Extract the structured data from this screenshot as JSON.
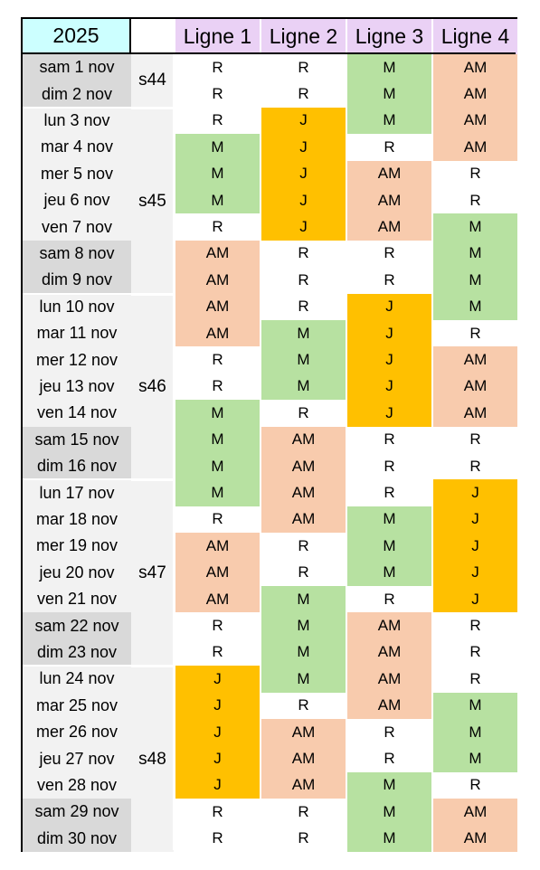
{
  "header": {
    "year": "2025",
    "lines": [
      "Ligne 1",
      "Ligne 2",
      "Ligne 3",
      "Ligne 4"
    ]
  },
  "colors": {
    "M": "#b7e1a1",
    "J": "#ffc000",
    "AM": "#f8cbad",
    "R": "#ffffff",
    "weekend": "#d9d9d9",
    "weekday": "#f2f2f2",
    "year_bg": "#ccffff",
    "line_bg": "#ead1f5"
  },
  "weeks": [
    {
      "label": "s44",
      "start": 0,
      "end": 1
    },
    {
      "label": "s45",
      "start": 2,
      "end": 8
    },
    {
      "label": "s46",
      "start": 9,
      "end": 15
    },
    {
      "label": "s47",
      "start": 16,
      "end": 22
    },
    {
      "label": "s48",
      "start": 23,
      "end": 29
    }
  ],
  "rows": [
    {
      "date": "sam 1 nov",
      "weekend": true,
      "values": [
        "R",
        "R",
        "M",
        "AM"
      ]
    },
    {
      "date": "dim 2 nov",
      "weekend": true,
      "values": [
        "R",
        "R",
        "M",
        "AM"
      ]
    },
    {
      "date": "lun 3 nov",
      "weekend": false,
      "values": [
        "R",
        "J",
        "M",
        "AM"
      ]
    },
    {
      "date": "mar 4 nov",
      "weekend": false,
      "values": [
        "M",
        "J",
        "R",
        "AM"
      ]
    },
    {
      "date": "mer 5 nov",
      "weekend": false,
      "values": [
        "M",
        "J",
        "AM",
        "R"
      ]
    },
    {
      "date": "jeu 6 nov",
      "weekend": false,
      "values": [
        "M",
        "J",
        "AM",
        "R"
      ]
    },
    {
      "date": "ven 7 nov",
      "weekend": false,
      "values": [
        "R",
        "J",
        "AM",
        "M"
      ]
    },
    {
      "date": "sam 8 nov",
      "weekend": true,
      "values": [
        "AM",
        "R",
        "R",
        "M"
      ]
    },
    {
      "date": "dim 9 nov",
      "weekend": true,
      "values": [
        "AM",
        "R",
        "R",
        "M"
      ]
    },
    {
      "date": "lun 10 nov",
      "weekend": false,
      "values": [
        "AM",
        "R",
        "J",
        "M"
      ]
    },
    {
      "date": "mar 11 nov",
      "weekend": false,
      "values": [
        "AM",
        "M",
        "J",
        "R"
      ]
    },
    {
      "date": "mer 12 nov",
      "weekend": false,
      "values": [
        "R",
        "M",
        "J",
        "AM"
      ]
    },
    {
      "date": "jeu 13 nov",
      "weekend": false,
      "values": [
        "R",
        "M",
        "J",
        "AM"
      ]
    },
    {
      "date": "ven 14 nov",
      "weekend": false,
      "values": [
        "M",
        "R",
        "J",
        "AM"
      ]
    },
    {
      "date": "sam 15 nov",
      "weekend": true,
      "values": [
        "M",
        "AM",
        "R",
        "R"
      ]
    },
    {
      "date": "dim 16 nov",
      "weekend": true,
      "values": [
        "M",
        "AM",
        "R",
        "R"
      ]
    },
    {
      "date": "lun 17 nov",
      "weekend": false,
      "values": [
        "M",
        "AM",
        "R",
        "J"
      ]
    },
    {
      "date": "mar 18 nov",
      "weekend": false,
      "values": [
        "R",
        "AM",
        "M",
        "J"
      ]
    },
    {
      "date": "mer 19 nov",
      "weekend": false,
      "values": [
        "AM",
        "R",
        "M",
        "J"
      ]
    },
    {
      "date": "jeu 20 nov",
      "weekend": false,
      "values": [
        "AM",
        "R",
        "M",
        "J"
      ]
    },
    {
      "date": "ven 21 nov",
      "weekend": false,
      "values": [
        "AM",
        "M",
        "R",
        "J"
      ]
    },
    {
      "date": "sam 22 nov",
      "weekend": true,
      "values": [
        "R",
        "M",
        "AM",
        "R"
      ]
    },
    {
      "date": "dim 23 nov",
      "weekend": true,
      "values": [
        "R",
        "M",
        "AM",
        "R"
      ]
    },
    {
      "date": "lun 24 nov",
      "weekend": false,
      "values": [
        "J",
        "M",
        "AM",
        "R"
      ]
    },
    {
      "date": "mar 25 nov",
      "weekend": false,
      "values": [
        "J",
        "R",
        "AM",
        "M"
      ]
    },
    {
      "date": "mer 26 nov",
      "weekend": false,
      "values": [
        "J",
        "AM",
        "R",
        "M"
      ]
    },
    {
      "date": "jeu 27 nov",
      "weekend": false,
      "values": [
        "J",
        "AM",
        "R",
        "M"
      ]
    },
    {
      "date": "ven 28 nov",
      "weekend": false,
      "values": [
        "J",
        "AM",
        "M",
        "R"
      ]
    },
    {
      "date": "sam 29 nov",
      "weekend": true,
      "values": [
        "R",
        "R",
        "M",
        "AM"
      ]
    },
    {
      "date": "dim 30 nov",
      "weekend": true,
      "values": [
        "R",
        "R",
        "M",
        "AM"
      ]
    }
  ]
}
